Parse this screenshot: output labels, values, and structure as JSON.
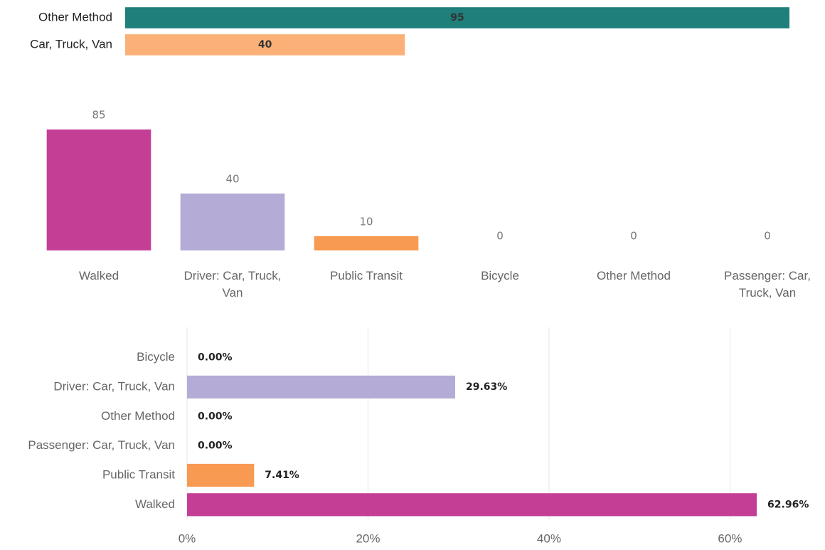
{
  "chart_data": [
    {
      "type": "barh",
      "categories": [
        "Other Method",
        "Car, Truck, Van"
      ],
      "values": [
        95,
        40
      ],
      "colors": [
        "#1f7f7a",
        "#fbb077"
      ]
    },
    {
      "type": "bar",
      "categories": [
        "Walked",
        "Driver: Car, Truck, Van",
        "Public Transit",
        "Bicycle",
        "Other Method",
        "Passenger: Car, Truck, Van"
      ],
      "values": [
        85,
        40,
        10,
        0,
        0,
        0
      ],
      "colors": [
        "#c43e96",
        "#b4acd6",
        "#f89a52",
        null,
        null,
        null
      ]
    },
    {
      "type": "barh",
      "categories": [
        "Bicycle",
        "Driver: Car, Truck, Van",
        "Other Method",
        "Passenger: Car, Truck, Van",
        "Public Transit",
        "Walked"
      ],
      "values": [
        0,
        29.63,
        0,
        0,
        7.41,
        62.96
      ],
      "value_labels": [
        "0.00%",
        "29.63%",
        "0.00%",
        "0.00%",
        "7.41%",
        "62.96%"
      ],
      "colors": [
        null,
        "#b4acd6",
        null,
        null,
        "#f89a52",
        "#c43e96"
      ],
      "xlim": [
        0,
        65
      ],
      "xticks": [
        {
          "value": 0,
          "label": "0%"
        },
        {
          "value": 20,
          "label": "20%"
        },
        {
          "value": 40,
          "label": "40%"
        },
        {
          "value": 60,
          "label": "60%"
        }
      ],
      "grid": true
    }
  ]
}
